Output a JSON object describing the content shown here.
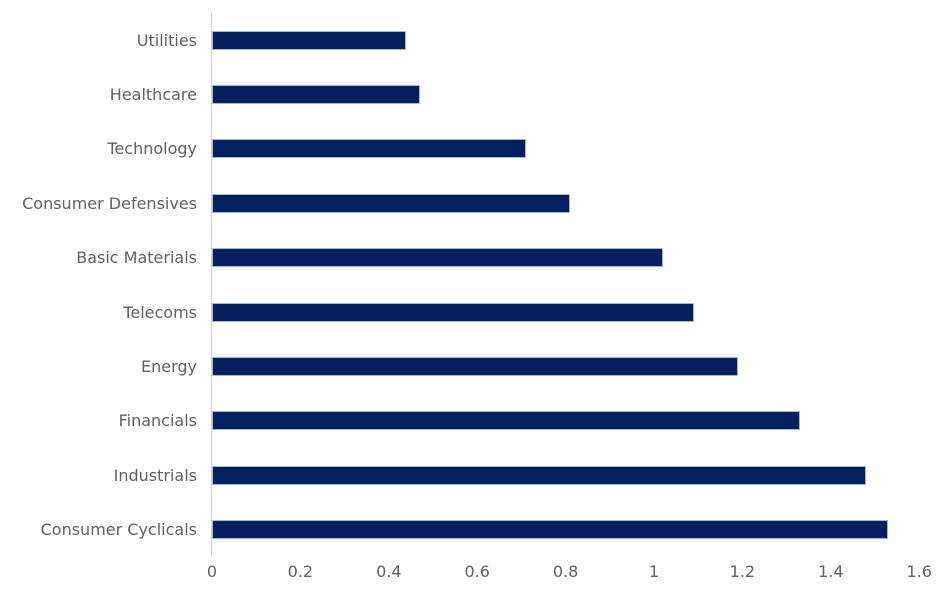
{
  "chart_data": {
    "type": "bar",
    "orientation": "horizontal",
    "title": "",
    "xlabel": "",
    "ylabel": "",
    "categories": [
      "Utilities",
      "Healthcare",
      "Technology",
      "Consumer Defensives",
      "Basic Materials",
      "Telecoms",
      "Energy",
      "Financials",
      "Industrials",
      "Consumer Cyclicals"
    ],
    "values": [
      0.44,
      0.47,
      0.71,
      0.81,
      1.02,
      1.09,
      1.19,
      1.33,
      1.48,
      1.53
    ],
    "xlim": [
      0,
      1.6
    ],
    "x_ticks": [
      0,
      0.2,
      0.4,
      0.6,
      0.8,
      1,
      1.2,
      1.4,
      1.6
    ],
    "x_tick_labels": [
      "0",
      "0.2",
      "0.4",
      "0.6",
      "0.8",
      "1",
      "1.2",
      "1.4",
      "1.6"
    ],
    "grid": false,
    "legend": "none",
    "colors": {
      "bar": "#04205f",
      "bar_border": "#a9b6d2",
      "axis_line": "#d6d6d6",
      "label": "#606060",
      "background": "#ffffff"
    }
  }
}
